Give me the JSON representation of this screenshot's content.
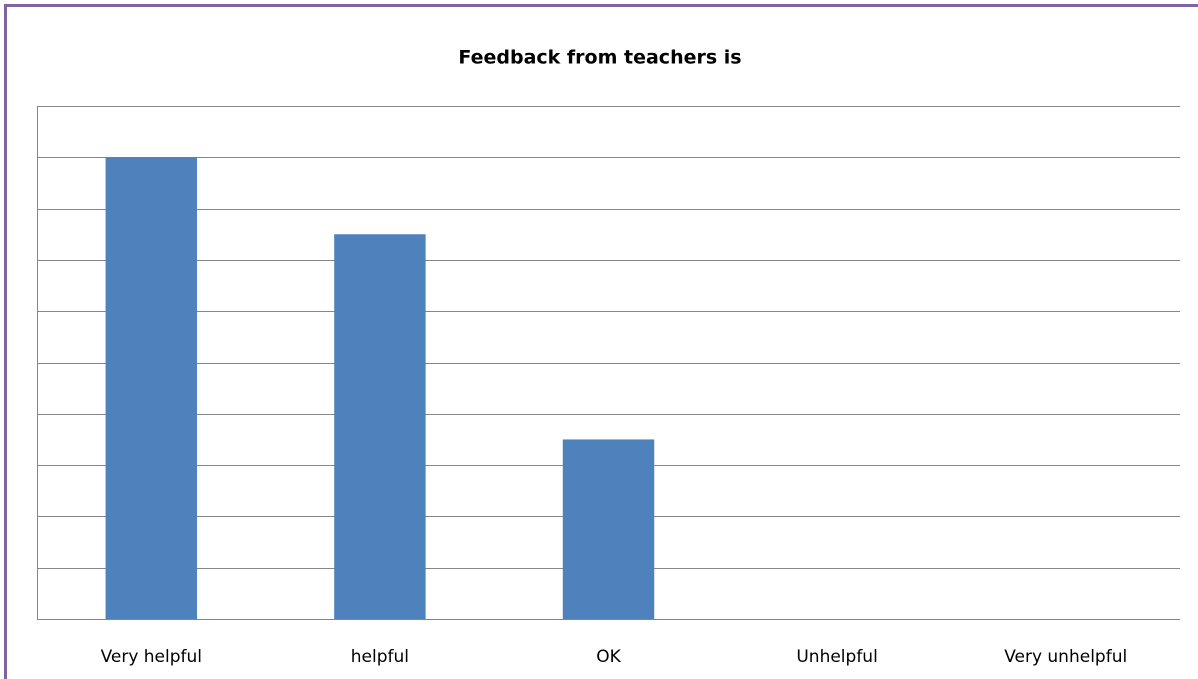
{
  "chart_data": {
    "type": "bar",
    "title": "Feedback from teachers is",
    "categories": [
      "Very helpful",
      "helpful",
      "OK",
      "Unhelpful",
      "Very unhelpful"
    ],
    "values": [
      9,
      7.5,
      3.5,
      0,
      0
    ],
    "color": "#4f81bd",
    "ylim": [
      0,
      10
    ],
    "yticks": [
      0,
      1,
      2,
      3,
      4,
      5,
      6,
      7,
      8,
      9,
      10
    ],
    "grid": true
  }
}
